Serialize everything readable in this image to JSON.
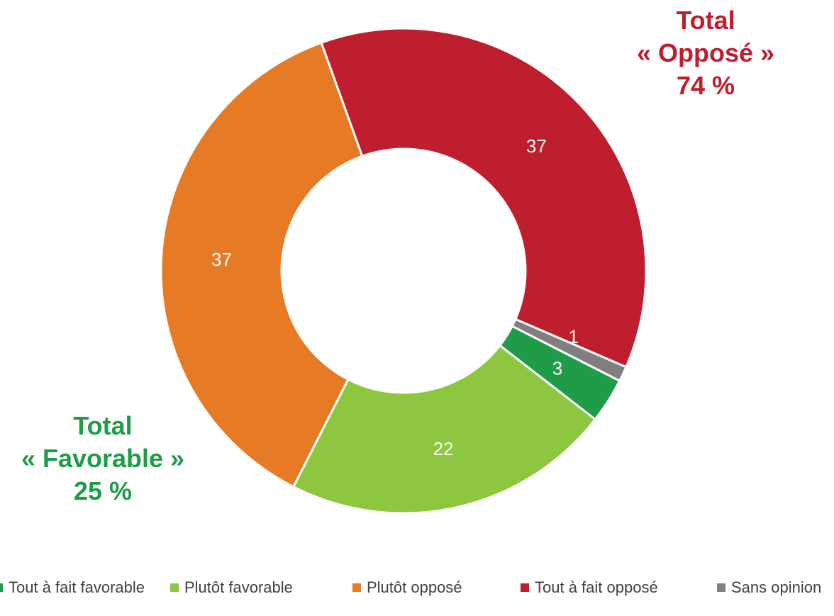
{
  "chart_data": {
    "type": "pie",
    "style": "donut",
    "slices": [
      {
        "label": "Tout à fait favorable",
        "value": 3,
        "color": "#1e9c48"
      },
      {
        "label": "Plutôt favorable",
        "value": 22,
        "color": "#8dc63f"
      },
      {
        "label": "Plutôt opposé",
        "value": 37,
        "color": "#e67a25"
      },
      {
        "label": "Tout à fait opposé",
        "value": 37,
        "color": "#be1e2d"
      },
      {
        "label": "Sans opinion",
        "value": 1,
        "color": "#7f7f7f"
      }
    ],
    "data_labels": [
      "3",
      "22",
      "37",
      "37",
      "1"
    ],
    "legend_position": "bottom",
    "annotations": [
      {
        "lines": [
          "Total",
          "« Opposé »",
          "74 %"
        ],
        "color": "#be1e2d",
        "position": "top-right"
      },
      {
        "lines": [
          "Total",
          "« Favorable »",
          "25 %"
        ],
        "color": "#1e9c48",
        "position": "bottom-left"
      }
    ]
  }
}
